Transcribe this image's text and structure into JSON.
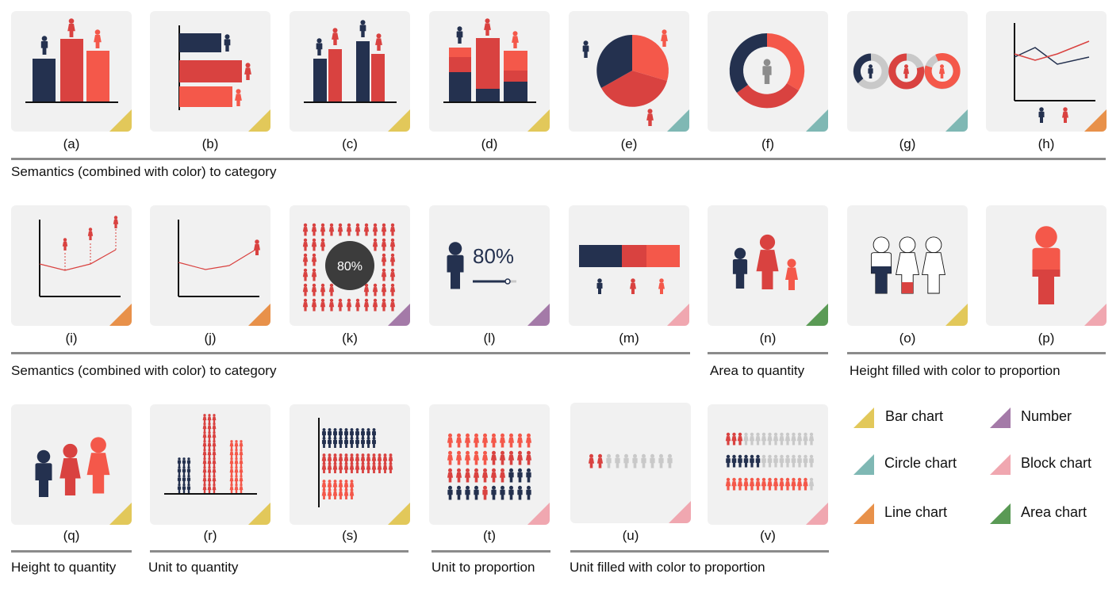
{
  "colors": {
    "navy": "#24314f",
    "red": "#d94240",
    "orange_red": "#f4584a",
    "gray": "#c9c9c9",
    "bar_chart": "#e2c85a",
    "circle_chart": "#7fb8b4",
    "line_chart": "#e8914a",
    "number": "#a47aa8",
    "block_chart": "#f0a7b0",
    "area_chart": "#5a9a55"
  },
  "captions": [
    "(a)",
    "(b)",
    "(c)",
    "(d)",
    "(e)",
    "(f)",
    "(g)",
    "(h)",
    "(i)",
    "(j)",
    "(k)",
    "(l)",
    "(m)",
    "(n)",
    "(o)",
    "(p)",
    "(q)",
    "(r)",
    "(s)",
    "(t)",
    "(u)",
    "(v)"
  ],
  "tile_icons": {
    "a": "bar chart with person icons",
    "k": "circle with person icons",
    "l": "number with person icon",
    "o": "people filled with color"
  },
  "tile_text": {
    "k": "80%",
    "l": "80%"
  },
  "sections": {
    "row1": "Semantics (combined with color) to category",
    "row2_a": "Semantics (combined with color) to category",
    "row2_b": "Area to quantity",
    "row2_c": "Height filled with color to proportion",
    "row3_a": "Height to quantity",
    "row3_b": "Unit to quantity",
    "row3_c": "Unit to proportion",
    "row3_d": "Unit filled with color to proportion"
  },
  "legend": [
    {
      "label": "Bar chart",
      "color": "#e2c85a"
    },
    {
      "label": "Number",
      "color": "#a47aa8"
    },
    {
      "label": "Circle chart",
      "color": "#7fb8b4"
    },
    {
      "label": "Block chart",
      "color": "#f0a7b0"
    },
    {
      "label": "Line chart",
      "color": "#e8914a"
    },
    {
      "label": "Area chart",
      "color": "#5a9a55"
    }
  ]
}
